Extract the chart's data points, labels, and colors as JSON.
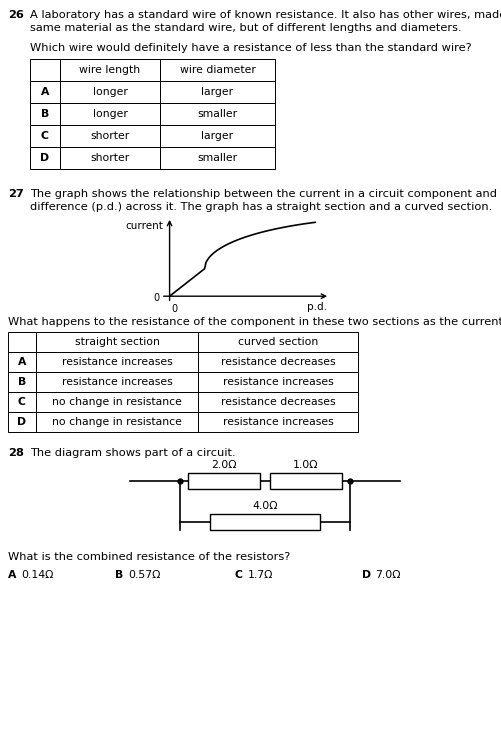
{
  "bg_color": "#ffffff",
  "text_color": "#000000",
  "q26_number": "26",
  "q26_text1": "A laboratory has a standard wire of known resistance. It also has other wires, made from t",
  "q26_text2": "same material as the standard wire, but of different lengths and diameters.",
  "q26_question": "Which wire would definitely have a resistance of less than the standard wire?",
  "q26_table_rows": [
    [
      "A",
      "longer",
      "larger"
    ],
    [
      "B",
      "longer",
      "smaller"
    ],
    [
      "C",
      "shorter",
      "larger"
    ],
    [
      "D",
      "shorter",
      "smaller"
    ]
  ],
  "q27_number": "27",
  "q27_text1": "The graph shows the relationship between the current in a circuit component and the potent",
  "q27_text2": "difference (p.d.) across it. The graph has a straight section and a curved section.",
  "q27_graph_ylabel": "current",
  "q27_graph_xlabel": "p.d.",
  "q27_graph_origin": "0",
  "q27_question": "What happens to the resistance of the component in these two sections as the current increase",
  "q27_table_rows": [
    [
      "A",
      "resistance increases",
      "resistance decreases"
    ],
    [
      "B",
      "resistance increases",
      "resistance increases"
    ],
    [
      "C",
      "no change in resistance",
      "resistance decreases"
    ],
    [
      "D",
      "no change in resistance",
      "resistance increases"
    ]
  ],
  "q28_number": "28",
  "q28_text": "The diagram shows part of a circuit.",
  "q28_question": "What is the combined resistance of the resistors?",
  "q28_answers": [
    [
      "A",
      "0.14Ω"
    ],
    [
      "B",
      "0.57Ω"
    ],
    [
      "C",
      "1.7Ω"
    ],
    [
      "D",
      "7.0Ω"
    ]
  ],
  "resistor_labels": [
    "2.0Ω",
    "1.0Ω",
    "4.0Ω"
  ]
}
